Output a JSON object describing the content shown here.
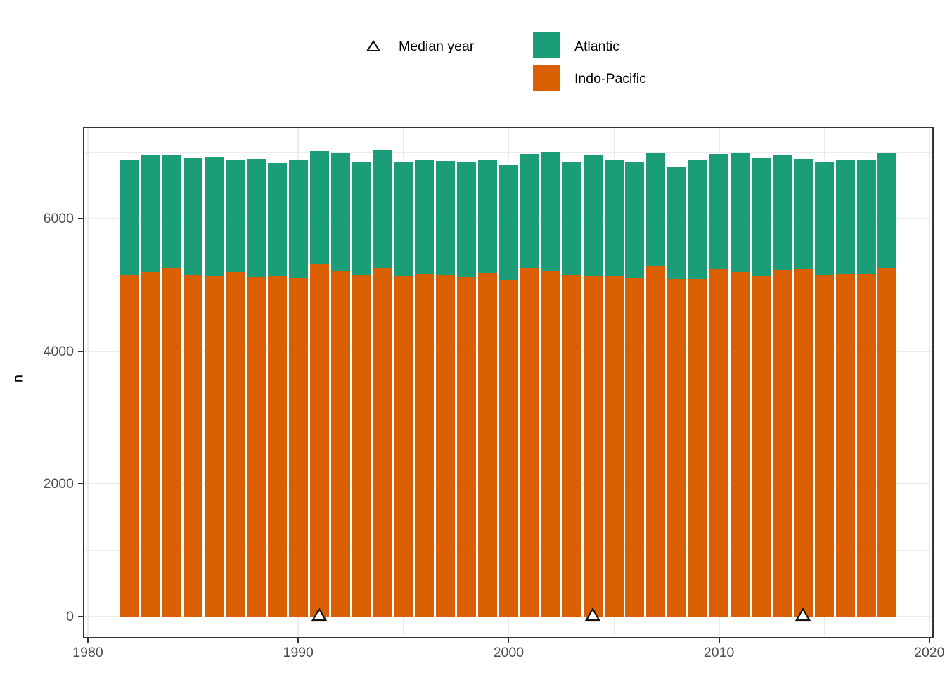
{
  "legend": {
    "median": {
      "label": "Median year",
      "symbol": "open-triangle"
    },
    "series": [
      {
        "label": "Atlantic",
        "color": "#1B9E77"
      },
      {
        "label": "Indo-Pacific",
        "color": "#D95F02"
      }
    ]
  },
  "axes": {
    "y_title": "n",
    "x_tick_labels": [
      "1980",
      "1990",
      "2000",
      "2010",
      "2020"
    ],
    "y_tick_labels": [
      "0",
      "2000",
      "4000",
      "6000"
    ]
  },
  "chart_data": {
    "type": "bar",
    "stacked": true,
    "title": "",
    "xlabel": "",
    "ylabel": "n",
    "categories": [
      1982,
      1983,
      1984,
      1985,
      1986,
      1987,
      1988,
      1989,
      1990,
      1991,
      1992,
      1993,
      1994,
      1995,
      1996,
      1997,
      1998,
      1999,
      2000,
      2001,
      2002,
      2003,
      2004,
      2005,
      2006,
      2007,
      2008,
      2009,
      2010,
      2011,
      2012,
      2013,
      2014,
      2015,
      2016,
      2017,
      2018
    ],
    "series": [
      {
        "name": "Indo-Pacific",
        "color": "#D95F02",
        "values": [
          5155,
          5195,
          5265,
          5155,
          5145,
          5195,
          5120,
          5135,
          5110,
          5325,
          5210,
          5150,
          5255,
          5140,
          5175,
          5150,
          5120,
          5185,
          5075,
          5260,
          5210,
          5155,
          5135,
          5135,
          5110,
          5285,
          5085,
          5095,
          5235,
          5200,
          5140,
          5225,
          5250,
          5155,
          5175,
          5175,
          5260
        ]
      },
      {
        "name": "Atlantic",
        "color": "#1B9E77",
        "values": [
          1740,
          1760,
          1690,
          1760,
          1790,
          1700,
          1785,
          1700,
          1785,
          1690,
          1780,
          1715,
          1790,
          1710,
          1710,
          1725,
          1745,
          1705,
          1735,
          1715,
          1800,
          1700,
          1820,
          1755,
          1755,
          1700,
          1700,
          1795,
          1740,
          1785,
          1785,
          1730,
          1650,
          1710,
          1710,
          1710,
          1740
        ]
      }
    ],
    "median_year_markers": [
      1991,
      2004,
      2014
    ],
    "x_ticks": [
      1980,
      1990,
      2000,
      2010,
      2020
    ],
    "x_minor_ticks": [
      1985,
      1995,
      2005,
      2015
    ],
    "y_ticks": [
      0,
      2000,
      4000,
      6000
    ],
    "y_minor_ticks": [
      1000,
      3000,
      5000,
      7000
    ],
    "xlim": [
      1979.8,
      2020.2
    ],
    "ylim": [
      0,
      7390
    ],
    "grid": true,
    "legend_position": "top-center"
  }
}
